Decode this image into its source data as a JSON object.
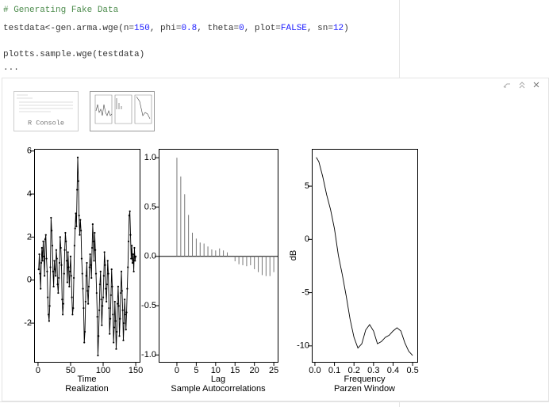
{
  "code": [
    [
      {
        "text": "# Generating Fake Data",
        "color": "#4d8c4d"
      }
    ],
    [
      {
        "text": "testdata<-gen.arma.wge(n="
      },
      {
        "text": "150",
        "color": "#1a1aff"
      },
      {
        "text": ", phi="
      },
      {
        "text": "0.8",
        "color": "#1a1aff"
      },
      {
        "text": ", theta="
      },
      {
        "text": "0",
        "color": "#1a1aff"
      },
      {
        "text": ", plot="
      },
      {
        "text": "FALSE",
        "color": "#1a1aff"
      },
      {
        "text": ", sn="
      },
      {
        "text": "12",
        "color": "#1a1aff"
      },
      {
        "text": ")"
      }
    ],
    [],
    [
      {
        "text": "plotts.sample.wge(testdata)"
      }
    ]
  ],
  "folded": "...",
  "thumbnails": [
    {
      "label": "R Console"
    }
  ],
  "chart_data": [
    {
      "type": "line",
      "xlabel": "Time",
      "title": "Realization",
      "markers": true,
      "color": "#000000",
      "x": [
        1,
        2,
        3,
        4,
        5,
        6,
        7,
        8,
        9,
        10,
        11,
        12,
        13,
        14,
        15,
        16,
        17,
        18,
        19,
        20,
        21,
        22,
        23,
        24,
        25,
        26,
        27,
        28,
        29,
        30,
        31,
        32,
        33,
        34,
        35,
        36,
        37,
        38,
        39,
        40,
        41,
        42,
        43,
        44,
        45,
        46,
        47,
        48,
        49,
        50,
        51,
        52,
        53,
        54,
        55,
        56,
        57,
        58,
        59,
        60,
        61,
        62,
        63,
        64,
        65,
        66,
        67,
        68,
        69,
        70,
        71,
        72,
        73,
        74,
        75,
        76,
        77,
        78,
        79,
        80,
        81,
        82,
        83,
        84,
        85,
        86,
        87,
        88,
        89,
        90,
        91,
        92,
        93,
        94,
        95,
        96,
        97,
        98,
        99,
        100,
        101,
        102,
        103,
        104,
        105,
        106,
        107,
        108,
        109,
        110,
        111,
        112,
        113,
        114,
        115,
        116,
        117,
        118,
        119,
        120,
        121,
        122,
        123,
        124,
        125,
        126,
        127,
        128,
        129,
        130,
        131,
        132,
        133,
        134,
        135,
        136,
        137,
        138,
        139,
        140,
        141,
        142,
        143,
        144,
        145,
        146,
        147,
        148,
        149,
        150
      ],
      "values": [
        0.5,
        1.2,
        0.3,
        -0.4,
        0.8,
        1.5,
        0.9,
        1.8,
        1.1,
        0.2,
        1.9,
        2.1,
        1.0,
        0.4,
        -0.8,
        -1.6,
        -1.9,
        -1.2,
        0.6,
        2.9,
        2.3,
        1.6,
        0.4,
        -0.3,
        0.9,
        0.5,
        0.2,
        1.4,
        1.0,
        -0.2,
        -0.6,
        0.1,
        0.8,
        2.0,
        1.5,
        0.7,
        -0.9,
        -1.6,
        -1.1,
        0.3,
        1.4,
        2.2,
        1.8,
        0.9,
        -0.1,
        1.3,
        0.6,
        -0.3,
        0.4,
        1.1,
        0.2,
        -0.8,
        -1.6,
        -1.3,
        0.1,
        1.6,
        2.4,
        3.1,
        2.5,
        4.2,
        5.7,
        4.6,
        3.0,
        2.1,
        2.8,
        2.3,
        1.0,
        0.3,
        -0.4,
        -1.3,
        -2.9,
        -2.4,
        -1.0,
        0.2,
        0.8,
        -0.5,
        -1.1,
        -0.3,
        0.6,
        1.2,
        0.7,
        0.1,
        1.5,
        2.6,
        1.8,
        0.9,
        2.2,
        1.4,
        0.3,
        -0.6,
        -1.7,
        -3.5,
        -2.6,
        -1.4,
        -0.2,
        0.4,
        -0.9,
        -2.1,
        -1.2,
        -0.8,
        0.2,
        1.3,
        0.7,
        -0.4,
        -1.0,
        -0.2,
        0.9,
        0.3,
        -1.3,
        -2.5,
        -1.8,
        -0.7,
        0.5,
        -0.3,
        -1.6,
        -2.9,
        -2.2,
        -1.0,
        -1.9,
        -3.2,
        -2.4,
        -1.1,
        -0.3,
        -1.2,
        -2.6,
        -1.8,
        -0.6,
        0.4,
        -0.5,
        -1.4,
        -2.8,
        -2.0,
        -0.9,
        -1.6,
        -2.3,
        -1.5,
        -0.4,
        0.6,
        1.8,
        3.0,
        3.2,
        2.1,
        1.0,
        1.6,
        0.8,
        1.2,
        0.4,
        1.5,
        0.9,
        1.1
      ],
      "xlim": [
        -6,
        156
      ],
      "xticks": [
        0,
        50,
        100,
        150
      ],
      "ylim": [
        -3.8,
        6.1
      ],
      "yticks": [
        -2,
        0,
        2,
        4,
        6
      ]
    },
    {
      "type": "bar",
      "xlabel": "Lag",
      "title": "Sample Autocorrelations",
      "color": "#777777",
      "baseline": 0,
      "x": [
        0,
        1,
        2,
        3,
        4,
        5,
        6,
        7,
        8,
        9,
        10,
        11,
        12,
        13,
        14,
        15,
        16,
        17,
        18,
        19,
        20,
        21,
        22,
        23,
        24,
        25
      ],
      "values": [
        1.0,
        0.81,
        0.63,
        0.42,
        0.24,
        0.18,
        0.14,
        0.13,
        0.1,
        0.07,
        0.06,
        0.08,
        0.06,
        0.04,
        0.0,
        -0.05,
        -0.08,
        -0.09,
        -0.1,
        -0.09,
        -0.13,
        -0.16,
        -0.19,
        -0.2,
        -0.2,
        -0.16
      ],
      "xlim": [
        -4.7,
        26
      ],
      "xticks": [
        0,
        5,
        10,
        15,
        20,
        25
      ],
      "ylim": [
        -1.07,
        1.09
      ],
      "yticks": [
        {
          "value": -1,
          "label": "-1.0"
        },
        {
          "value": -0.5,
          "label": "-0.5"
        },
        {
          "value": 0,
          "label": "0.0"
        },
        {
          "value": 0.5,
          "label": "0.5"
        },
        {
          "value": 1,
          "label": "1.0"
        }
      ]
    },
    {
      "type": "line",
      "xlabel": "Frequency",
      "title": "Parzen Window",
      "ylabel": "dB",
      "markers": false,
      "color": "#000000",
      "x": [
        0.007,
        0.02,
        0.04,
        0.06,
        0.08,
        0.1,
        0.12,
        0.14,
        0.16,
        0.18,
        0.2,
        0.22,
        0.24,
        0.26,
        0.28,
        0.3,
        0.32,
        0.34,
        0.36,
        0.38,
        0.4,
        0.42,
        0.44,
        0.46,
        0.48,
        0.5
      ],
      "values": [
        7.7,
        7.3,
        5.9,
        4.2,
        2.8,
        1.0,
        -1.5,
        -3.3,
        -5.3,
        -7.5,
        -9.2,
        -10.2,
        -9.8,
        -8.5,
        -8.0,
        -8.6,
        -9.8,
        -9.6,
        -9.2,
        -9.0,
        -8.6,
        -8.3,
        -8.6,
        -9.7,
        -10.5,
        -10.9
      ],
      "xlim": [
        -0.016,
        0.524
      ],
      "xticks": [
        {
          "value": 0,
          "label": "0.0"
        },
        0.1,
        0.2,
        0.3,
        0.4,
        0.5
      ],
      "ylim": [
        -11.5,
        8.5
      ],
      "yticks": [
        -10,
        -5,
        0,
        5
      ]
    }
  ]
}
